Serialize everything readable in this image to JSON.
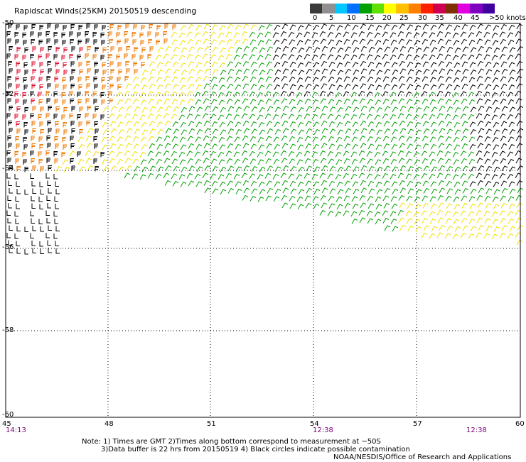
{
  "header": {
    "title": "Rapidscat Winds(25KM) 20150519 descending"
  },
  "legend": {
    "colors": [
      "#3a3a3a",
      "#909090",
      "#00c8ff",
      "#0070ff",
      "#00a000",
      "#60e000",
      "#ffff00",
      "#ffc000",
      "#ff8000",
      "#ff2000",
      "#d00050",
      "#803000",
      "#e000e0",
      "#8000c0",
      "#4000a0"
    ],
    "labels": [
      "0",
      "5",
      "10",
      "15",
      "20",
      "25",
      "30",
      "35",
      "40",
      "45",
      ">50 knots"
    ],
    "label_positions": [
      10,
      33,
      58,
      84,
      108,
      132,
      158,
      182,
      208,
      232,
      258
    ]
  },
  "axes": {
    "lon_labels": [
      "45",
      "48",
      "51",
      "54",
      "57",
      "60"
    ],
    "lat_labels": [
      "-50",
      "-52",
      "-54",
      "-56",
      "-58",
      "-60"
    ],
    "time_labels": [
      "14:13",
      "12:38",
      "12:38"
    ]
  },
  "footer": {
    "note_line1": "Note: 1) Times are GMT 2)Times along bottom correspond to measurement at ~50S",
    "note_line2": "3)Data buffer is 22 hrs from 20150519 4) Black circles indicate possible contamination",
    "credit": "NOAA/NESDIS/Office of Research and Applications"
  },
  "wind_colors": {
    "black": "#000000",
    "red": "#e01030",
    "orange": "#f07800",
    "yellow": "#f0e000",
    "green": "#00a000"
  }
}
